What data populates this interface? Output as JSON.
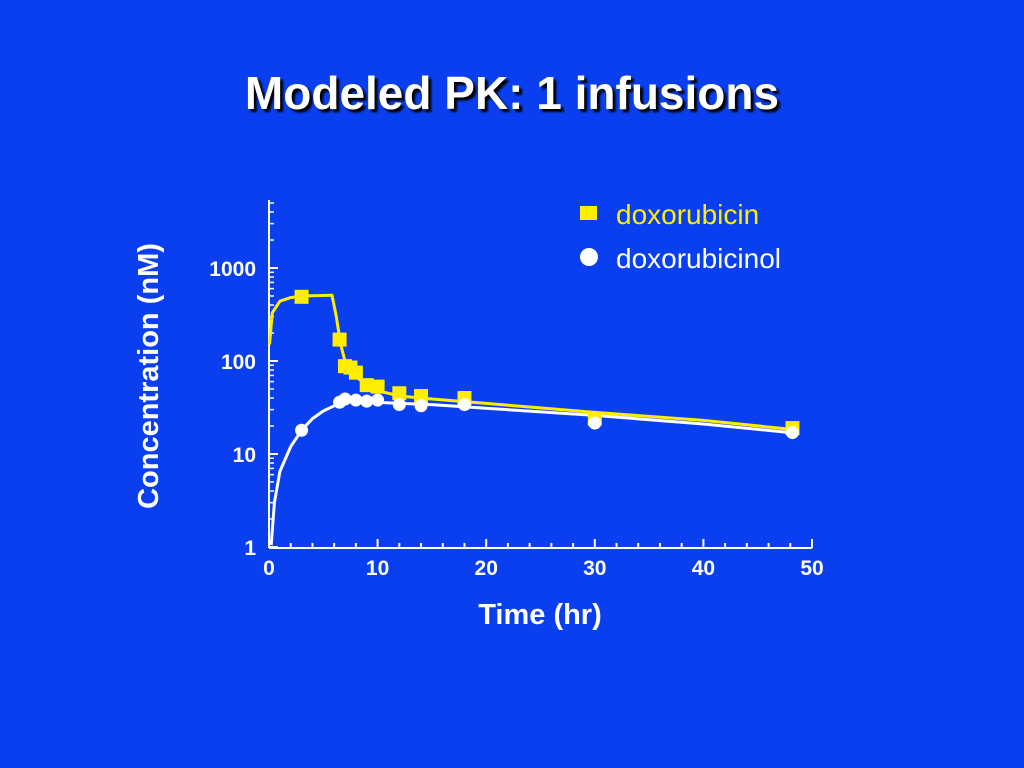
{
  "slide": {
    "title": "Modeled PK: 1 infusions"
  },
  "colors": {
    "background": "#0a3ff0",
    "doxorubicin": "#ffee00",
    "doxorubicinol": "#ffffff",
    "axis": "#ffffff"
  },
  "chart_data": {
    "type": "scatter",
    "title": "",
    "xlabel": "Time (hr)",
    "ylabel": "Concentration (nM)",
    "xlim": [
      0,
      50
    ],
    "ylim": [
      1,
      5000
    ],
    "yscale": "log",
    "x_ticks": [
      0,
      10,
      20,
      30,
      40,
      50
    ],
    "x_tick_labels": [
      "0",
      "10",
      "20",
      "30",
      "40",
      "50"
    ],
    "y_ticks": [
      1,
      10,
      100,
      1000
    ],
    "y_tick_labels": [
      "1",
      "10",
      "100",
      "1000"
    ],
    "grid": false,
    "legend_position": "top-right",
    "series": [
      {
        "name": "doxorubicin",
        "marker": "square",
        "color": "#ffee00",
        "points": [
          [
            3,
            490
          ],
          [
            6.5,
            170
          ],
          [
            7,
            88
          ],
          [
            7.5,
            85
          ],
          [
            8,
            75
          ],
          [
            9,
            55
          ],
          [
            10,
            53
          ],
          [
            12,
            45
          ],
          [
            14,
            42
          ],
          [
            18,
            40
          ],
          [
            30,
            24
          ],
          [
            48.2,
            19
          ]
        ],
        "curve": [
          [
            0.05,
            150
          ],
          [
            0.3,
            330
          ],
          [
            1,
            440
          ],
          [
            2,
            480
          ],
          [
            3,
            500
          ],
          [
            4.5,
            505
          ],
          [
            5.8,
            510
          ],
          [
            6.2,
            300
          ],
          [
            6.6,
            150
          ],
          [
            7,
            100
          ],
          [
            7.5,
            80
          ],
          [
            8,
            68
          ],
          [
            9,
            55
          ],
          [
            10,
            48
          ],
          [
            12,
            42
          ],
          [
            15,
            39
          ],
          [
            20,
            35
          ],
          [
            30,
            28
          ],
          [
            40,
            23
          ],
          [
            48,
            18.5
          ]
        ]
      },
      {
        "name": "doxorubicinol",
        "marker": "circle",
        "color": "#ffffff",
        "points": [
          [
            3,
            18
          ],
          [
            6.5,
            36
          ],
          [
            7,
            39
          ],
          [
            8,
            38
          ],
          [
            9,
            37
          ],
          [
            10,
            38
          ],
          [
            12,
            34
          ],
          [
            14,
            33
          ],
          [
            18,
            34
          ],
          [
            30,
            21.5
          ],
          [
            48.2,
            17
          ]
        ],
        "curve": [
          [
            0.2,
            1.05
          ],
          [
            0.5,
            3
          ],
          [
            1,
            6.5
          ],
          [
            2,
            12
          ],
          [
            3,
            18
          ],
          [
            4,
            24
          ],
          [
            5,
            29
          ],
          [
            6,
            33
          ],
          [
            7,
            36
          ],
          [
            8,
            37
          ],
          [
            10,
            36
          ],
          [
            12,
            35
          ],
          [
            15,
            34
          ],
          [
            20,
            31
          ],
          [
            30,
            26
          ],
          [
            40,
            21
          ],
          [
            48,
            17
          ]
        ]
      }
    ]
  }
}
